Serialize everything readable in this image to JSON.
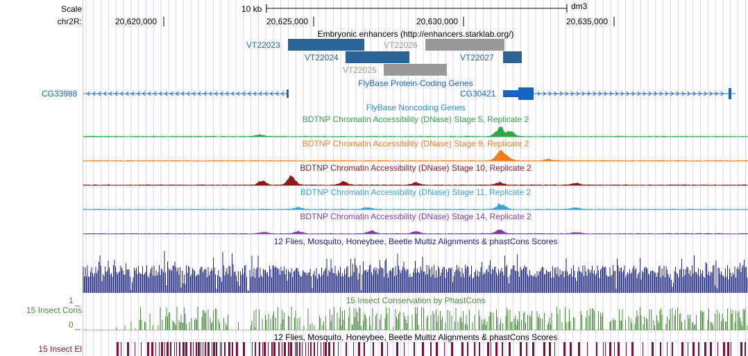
{
  "header": {
    "scale_label": "Scale",
    "scale_value": "10 kb",
    "assembly": "dm3",
    "chrom_label": "chr2R:",
    "positions": [
      "20,620,000",
      "20,625,000",
      "20,630,000",
      "20,635,000"
    ]
  },
  "tracks": {
    "enhancers": {
      "title": "Embryonic enhancers (http://enhancers.starklab.org/)",
      "items": [
        {
          "name": "VT22023",
          "color": "#2a6496"
        },
        {
          "name": "VT22024",
          "color": "#2a6496"
        },
        {
          "name": "VT22026",
          "color": "#999999"
        },
        {
          "name": "VT22025",
          "color": "#999999"
        },
        {
          "name": "VT22027",
          "color": "#2a6496"
        }
      ]
    },
    "protein_genes": {
      "title": "FlyBase Protein-Coding Genes",
      "genes": [
        "CG33988",
        "CG30421"
      ],
      "color": "#1565c0"
    },
    "noncoding_genes": {
      "title": "FlyBase Noncoding Genes",
      "color": "#2a8fd0"
    },
    "dnase": [
      {
        "title": "BDTNP Chromatin Accessibility (DNase) Stage 5, Replicate 2",
        "color": "#2fa64a"
      },
      {
        "title": "BDTNP Chromatin Accessibility (DNase) Stage 9, Replicate 2",
        "color": "#f07d1e"
      },
      {
        "title": "BDTNP Chromatin Accessibility (DNase) Stage 10, Replicate 2",
        "color": "#8b1a1a"
      },
      {
        "title": "BDTNP Chromatin Accessibility (DNase) Stage 11, Replicate 2",
        "color": "#3ba3d4"
      },
      {
        "title": "BDTNP Chromatin Accessibility (DNase) Stage 14, Replicate 2",
        "color": "#7d3fa6"
      }
    ],
    "multiz": {
      "title": "12 Flies, Mosquito, Honeybee, Beetle Multiz Alignments & phastCons Scores",
      "color": "#1a237e"
    },
    "insect_cons": {
      "title": "15 Insect Conservation by PhastCons",
      "left_label": "15 Insect Cons",
      "y_max": "1",
      "y_min": "0",
      "color": "#4a8a3c"
    },
    "insect_el": {
      "title": "12 Flies, Mosquito, Honeybee, Beetle Multiz Alignments & phastCons Scores",
      "left_label": "15 Insect El",
      "color": "#7b1236"
    }
  }
}
